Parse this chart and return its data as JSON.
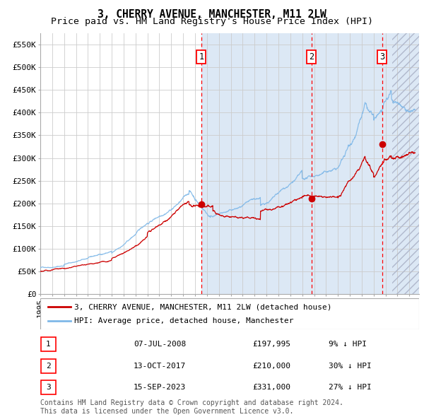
{
  "title": "3, CHERRY AVENUE, MANCHESTER, M11 2LW",
  "subtitle": "Price paid vs. HM Land Registry's House Price Index (HPI)",
  "ylim": [
    0,
    575000
  ],
  "xlim_start": 1995.0,
  "xlim_end": 2026.8,
  "yticks": [
    0,
    50000,
    100000,
    150000,
    200000,
    250000,
    300000,
    350000,
    400000,
    450000,
    500000,
    550000
  ],
  "ytick_labels": [
    "£0",
    "£50K",
    "£100K",
    "£150K",
    "£200K",
    "£250K",
    "£300K",
    "£350K",
    "£400K",
    "£450K",
    "£500K",
    "£550K"
  ],
  "hpi_color": "#7fb8e8",
  "price_color": "#cc0000",
  "bg_shaded_start": 2008.52,
  "bg_shaded_color": "#dce8f5",
  "hatch_start": 2024.58,
  "sale_dates": [
    2008.52,
    2017.78,
    2023.71
  ],
  "sale_prices": [
    197995,
    210000,
    331000
  ],
  "sale_labels": [
    "1",
    "2",
    "3"
  ],
  "legend_price_label": "3, CHERRY AVENUE, MANCHESTER, M11 2LW (detached house)",
  "legend_hpi_label": "HPI: Average price, detached house, Manchester",
  "table_rows": [
    [
      "1",
      "07-JUL-2008",
      "£197,995",
      "9% ↓ HPI"
    ],
    [
      "2",
      "13-OCT-2017",
      "£210,000",
      "30% ↓ HPI"
    ],
    [
      "3",
      "15-SEP-2023",
      "£331,000",
      "27% ↓ HPI"
    ]
  ],
  "footer": "Contains HM Land Registry data © Crown copyright and database right 2024.\nThis data is licensed under the Open Government Licence v3.0.",
  "title_fontsize": 10.5,
  "subtitle_fontsize": 9.5,
  "tick_fontsize": 8,
  "legend_fontsize": 8,
  "table_fontsize": 8,
  "footer_fontsize": 7
}
